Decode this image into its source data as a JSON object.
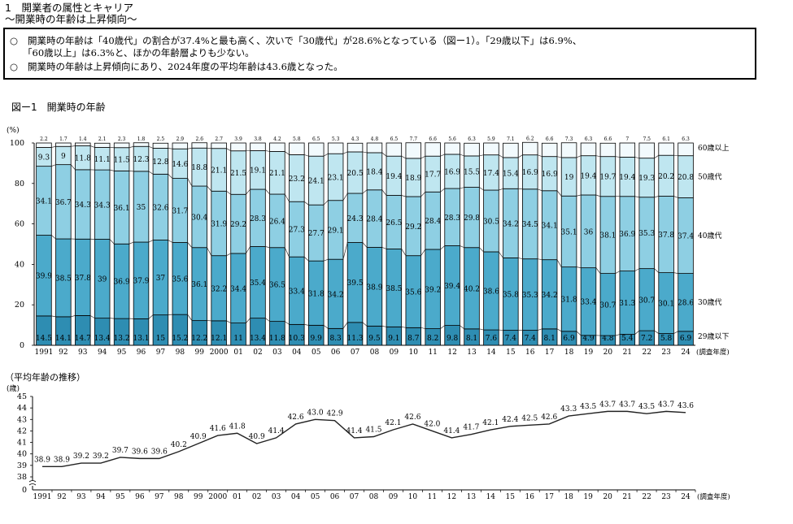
{
  "heading": {
    "title": "1　開業者の属性とキャリア",
    "subtitle": "～開業時の年齢は上昇傾向～"
  },
  "summary": {
    "bullet": "○",
    "line1": "開業時の年齢は「40歳代」の割合が37.4%と最も高く、次いで「30歳代」が28.6%となっている（図ー1）。「29歳以下」は6.9%、",
    "line2": "「60歳以上」は6.3%と、ほかの年齢層よりも少ない。",
    "line3": "開業時の年齢は上昇傾向にあり、2024年度の平均年齢は43.6歳となった。"
  },
  "figure_title": "図ー1　開業時の年齢",
  "line_title": "（平均年齢の推移）",
  "colors": {
    "under29": "#2e8db2",
    "age30s": "#4baacb",
    "age40s": "#8ecfe3",
    "age50s": "#bfe6f0",
    "over60": "#f2fafd",
    "line": "#222222"
  },
  "chart_data": [
    {
      "type": "bar",
      "stacked": true,
      "percent_stacked": true,
      "ylabel": "(%)",
      "ylim": [
        0,
        100
      ],
      "yticks": [
        0,
        20,
        40,
        60,
        80,
        100
      ],
      "xlabel": "(調査年度)",
      "categories": [
        "1991",
        "92",
        "93",
        "94",
        "95",
        "96",
        "97",
        "98",
        "99",
        "2000",
        "01",
        "02",
        "03",
        "04",
        "05",
        "06",
        "07",
        "08",
        "09",
        "10",
        "11",
        "12",
        "13",
        "14",
        "15",
        "16",
        "17",
        "18",
        "19",
        "20",
        "21",
        "22",
        "23",
        "24"
      ],
      "series": [
        {
          "name": "29歳以下",
          "values": [
            14.5,
            14.1,
            14.7,
            13.4,
            13.2,
            13.1,
            15.0,
            15.2,
            12.2,
            12.1,
            11.0,
            13.4,
            11.8,
            10.3,
            9.9,
            8.3,
            11.3,
            9.5,
            9.1,
            8.7,
            8.2,
            9.8,
            8.1,
            7.6,
            7.4,
            7.4,
            8.1,
            6.9,
            4.9,
            4.8,
            5.4,
            7.2,
            5.8,
            6.9
          ]
        },
        {
          "name": "30歳代",
          "values": [
            39.9,
            38.5,
            37.8,
            39.0,
            36.9,
            37.9,
            37.0,
            35.6,
            36.1,
            32.2,
            34.4,
            35.4,
            36.5,
            33.4,
            31.8,
            34.2,
            39.5,
            38.9,
            38.5,
            35.6,
            39.2,
            39.4,
            40.2,
            38.6,
            35.8,
            35.3,
            34.2,
            31.8,
            33.4,
            30.7,
            31.3,
            30.7,
            30.1,
            28.6
          ]
        },
        {
          "name": "40歳代",
          "values": [
            34.1,
            36.7,
            34.3,
            34.3,
            36.1,
            35.0,
            32.6,
            31.7,
            30.4,
            31.9,
            29.2,
            28.3,
            26.4,
            27.3,
            27.7,
            29.1,
            24.3,
            28.4,
            26.5,
            29.2,
            28.4,
            28.3,
            29.8,
            30.5,
            34.2,
            34.5,
            34.1,
            35.1,
            36.0,
            38.1,
            36.9,
            35.3,
            37.8,
            37.4
          ]
        },
        {
          "name": "50歳代",
          "values": [
            9.3,
            9.0,
            11.8,
            11.1,
            11.5,
            12.3,
            12.8,
            14.6,
            18.8,
            21.1,
            21.5,
            19.1,
            21.1,
            23.2,
            24.1,
            23.1,
            20.5,
            18.4,
            19.4,
            18.9,
            17.7,
            16.9,
            15.5,
            17.4,
            15.4,
            16.9,
            16.9,
            19.0,
            19.4,
            19.7,
            19.4,
            19.3,
            20.2,
            20.8
          ]
        },
        {
          "name": "60歳以上",
          "values": [
            2.2,
            1.7,
            1.4,
            2.1,
            2.3,
            1.8,
            2.5,
            2.9,
            2.6,
            2.7,
            3.9,
            3.8,
            4.2,
            5.8,
            6.5,
            5.3,
            4.3,
            4.8,
            6.5,
            7.7,
            6.6,
            5.6,
            6.3,
            5.9,
            7.1,
            6.2,
            6.6,
            7.3,
            6.3,
            6.6,
            7.0,
            7.5,
            6.1,
            6.3
          ]
        }
      ]
    },
    {
      "type": "line",
      "title": "（平均年齢の推移）",
      "ylabel": "(歳)",
      "ylim": [
        37,
        45
      ],
      "yticks": [
        38,
        39,
        40,
        41,
        42,
        43,
        44,
        45
      ],
      "y_axis_break_to": 0,
      "xlabel": "(調査年度)",
      "categories": [
        "1991",
        "92",
        "93",
        "94",
        "95",
        "96",
        "97",
        "98",
        "99",
        "2000",
        "01",
        "02",
        "03",
        "04",
        "05",
        "06",
        "07",
        "08",
        "09",
        "10",
        "11",
        "12",
        "13",
        "14",
        "15",
        "16",
        "17",
        "18",
        "19",
        "20",
        "21",
        "22",
        "23",
        "24"
      ],
      "values": [
        38.9,
        38.9,
        39.2,
        39.2,
        39.7,
        39.6,
        39.6,
        40.2,
        40.9,
        41.6,
        41.8,
        40.9,
        41.4,
        42.6,
        43.0,
        42.9,
        41.4,
        41.5,
        42.1,
        42.6,
        42.0,
        41.4,
        41.7,
        42.1,
        42.4,
        42.5,
        42.6,
        43.3,
        43.5,
        43.7,
        43.7,
        43.5,
        43.7,
        43.6
      ]
    }
  ]
}
